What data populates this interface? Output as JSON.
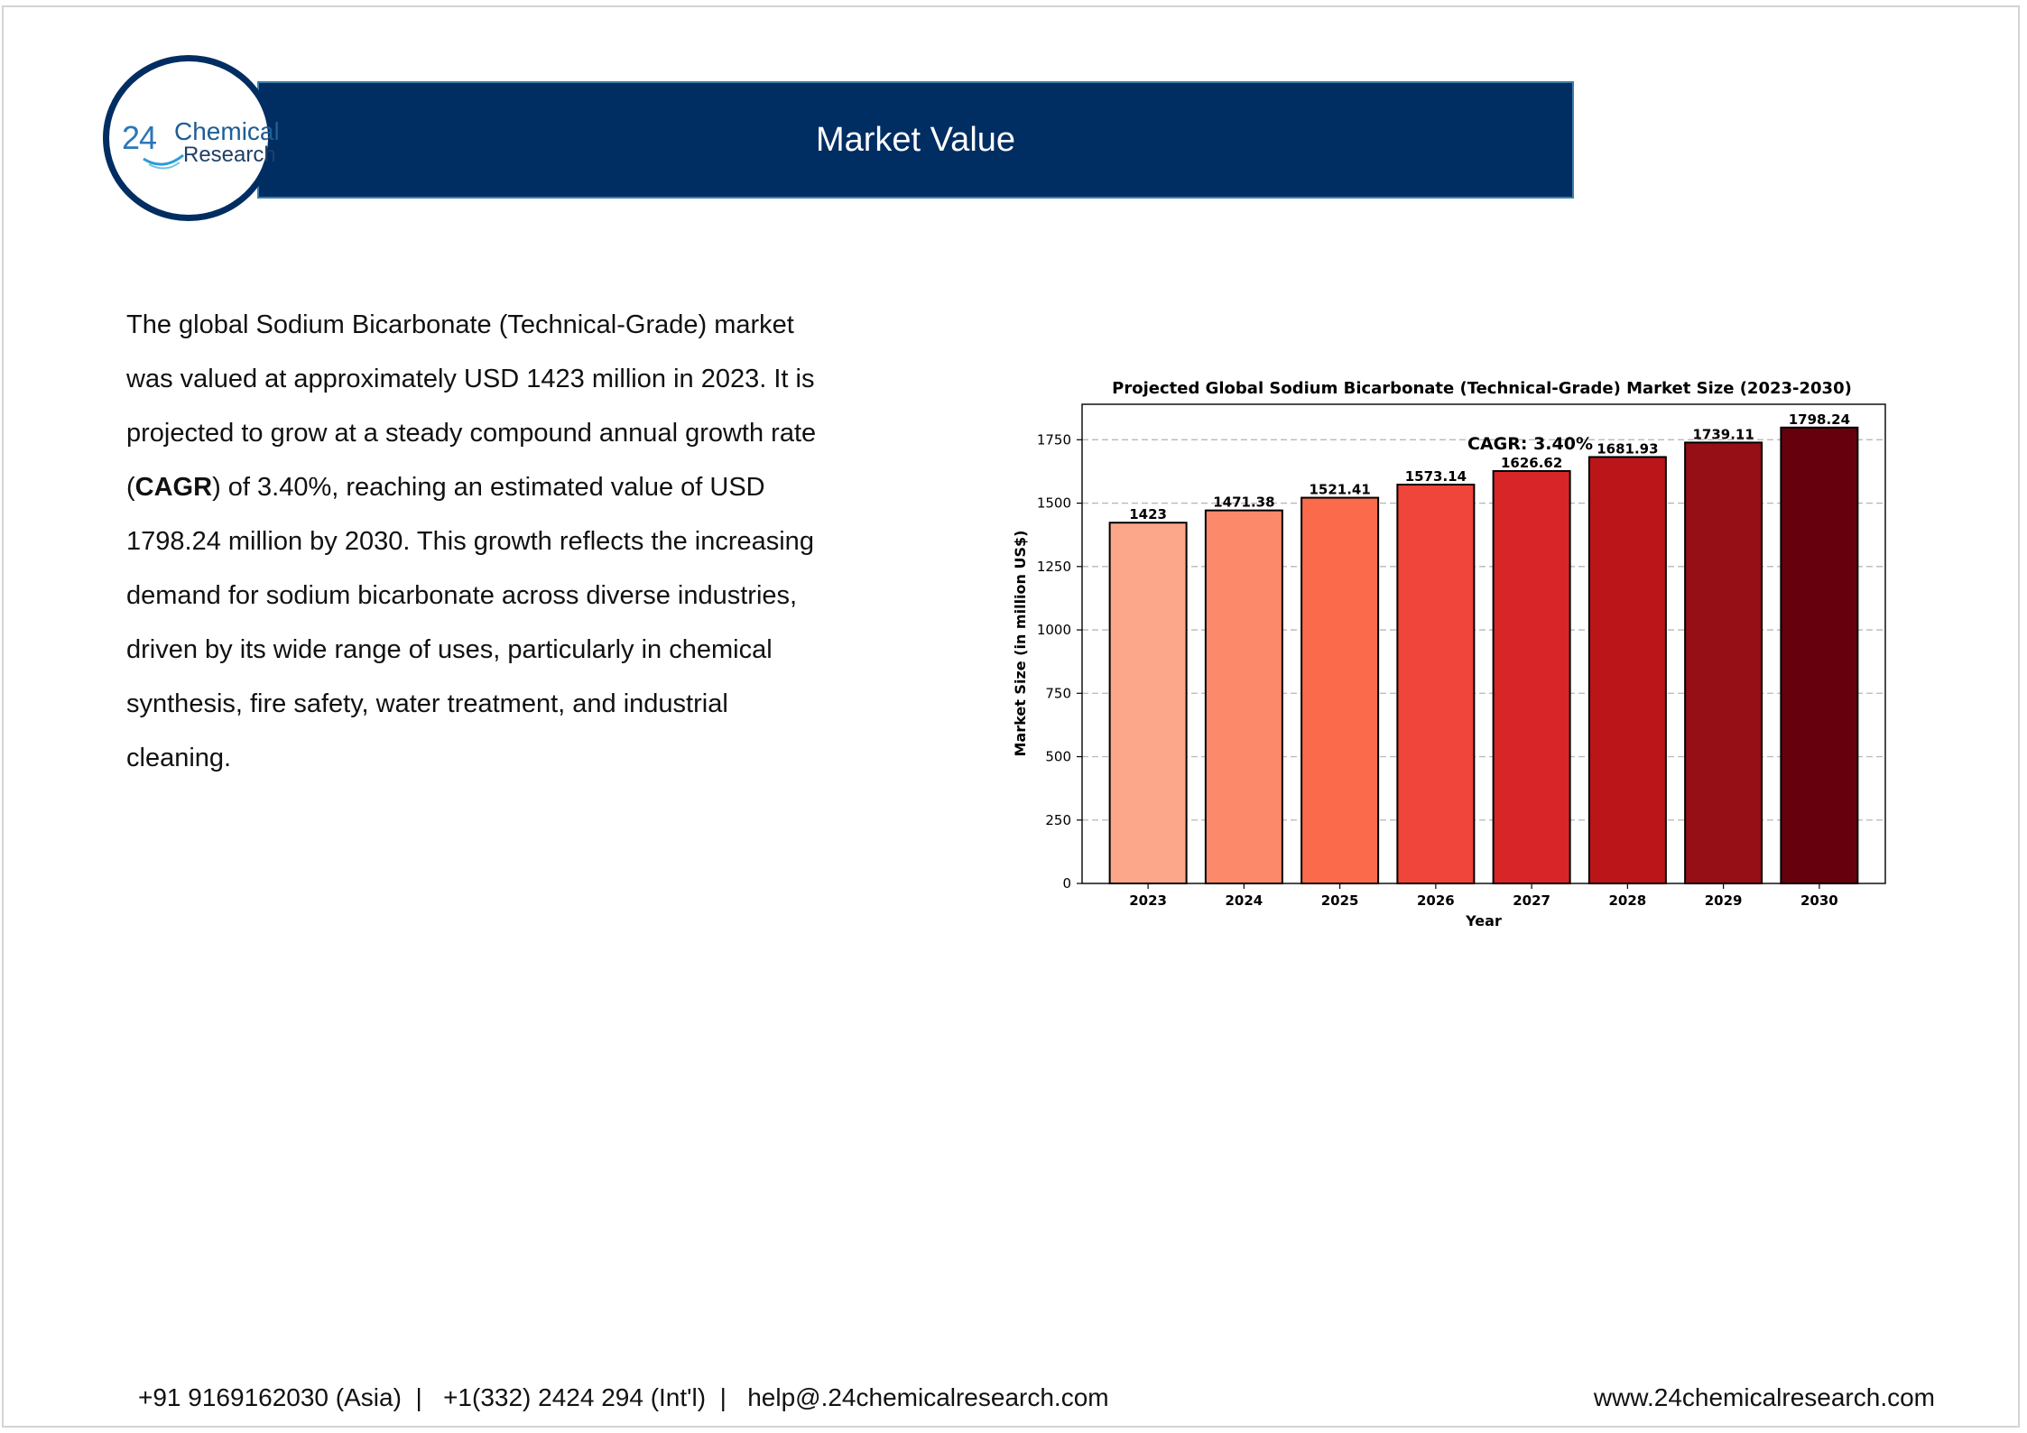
{
  "header": {
    "title": "Market Value",
    "logo": {
      "number": "24",
      "line1": "Chemical",
      "line2": "Research"
    }
  },
  "body": {
    "part1": "The global Sodium Bicarbonate (Technical-Grade) market was valued at approximately USD 1423 million in 2023. It is projected to grow at a steady compound annual growth rate (",
    "bold": "CAGR",
    "part2": ") of 3.40%, reaching an estimated value of USD 1798.24 million by 2030. This growth reflects the increasing demand for sodium bicarbonate across diverse industries, driven by its wide range of uses, particularly in chemical synthesis, fire safety, water treatment, and industrial cleaning."
  },
  "chart_data": {
    "type": "bar",
    "title": "Projected Global Sodium Bicarbonate (Technical-Grade) Market Size (2023-2030)",
    "xlabel": "Year",
    "ylabel": "Market Size (in million US$)",
    "categories": [
      "2023",
      "2024",
      "2025",
      "2026",
      "2027",
      "2028",
      "2029",
      "2030"
    ],
    "values": [
      1423,
      1471.38,
      1521.41,
      1573.14,
      1626.62,
      1681.93,
      1739.11,
      1798.24
    ],
    "value_labels": [
      "1423",
      "1471.38",
      "1521.41",
      "1573.14",
      "1626.62",
      "1681.93",
      "1739.11",
      "1798.24"
    ],
    "colors": [
      "#fca78a",
      "#fc8a6a",
      "#fb6b4b",
      "#f0453a",
      "#d82528",
      "#bb151a",
      "#960f16",
      "#67000d"
    ],
    "ylim": [
      0,
      1890
    ],
    "yticks": [
      0,
      250,
      500,
      750,
      1000,
      1250,
      1500,
      1750
    ],
    "grid": "horizontal-dashed",
    "annotation": "CAGR: 3.40%"
  },
  "footer": {
    "contacts": "+91 9169162030 (Asia)  |   +1(332) 2424 294 (Int'l)  |   help@.24chemicalresearch.com",
    "website": "www.24chemicalresearch.com"
  }
}
